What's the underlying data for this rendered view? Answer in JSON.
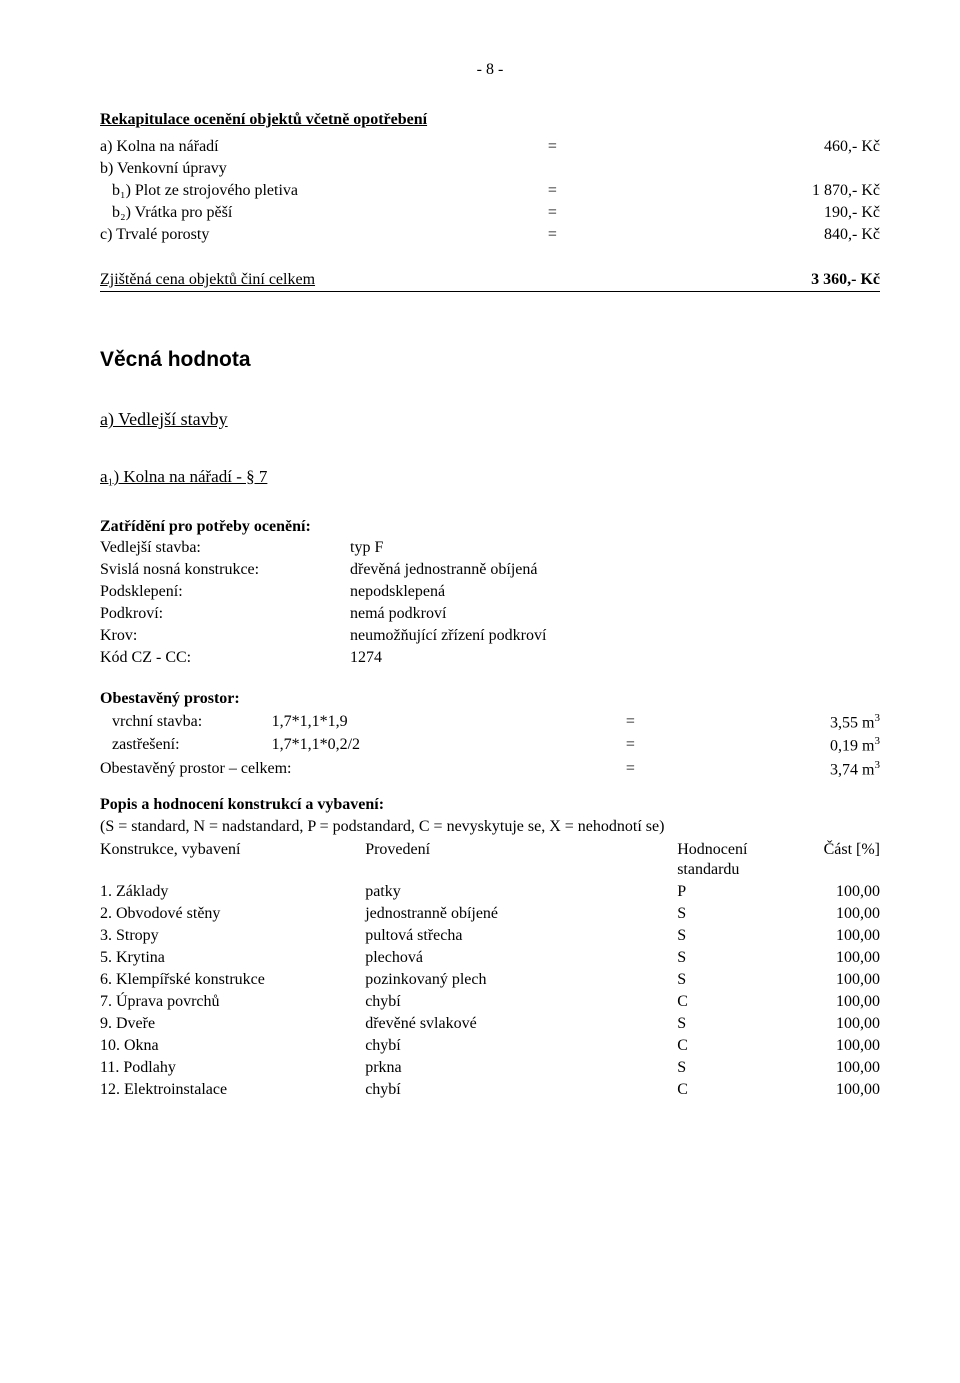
{
  "page_num": "- 8 -",
  "recap_title": "Rekapitulace ocenění objektů včetně opotřebení",
  "recap_rows": [
    {
      "label": "a) Kolna na nářadí",
      "eq": "=",
      "val": "460,- Kč",
      "indent": false
    },
    {
      "label": "b) Venkovní úpravy",
      "eq": "",
      "val": "",
      "indent": false
    },
    {
      "label": "b₁) Plot ze strojového pletiva",
      "eq": "=",
      "val": "1 870,- Kč",
      "indent": true
    },
    {
      "label": "b₂) Vrátka pro pěší",
      "eq": "=",
      "val": "190,- Kč",
      "indent": true
    },
    {
      "label": "c) Trvalé porosty",
      "eq": "=",
      "val": "840,- Kč",
      "indent": false
    }
  ],
  "zjistena_label": "Zjištěná cena objektů činí celkem",
  "zjistena_val": "3 360,- Kč",
  "vecna_title": "Věcná hodnota",
  "vedlejsi_title": "a) Vedlejší stavby",
  "a1_title": "a₁) Kolna na nářadí - § 7",
  "zatrideni_title": "Zatřídění pro potřeby ocenění:",
  "zatrideni_rows": [
    {
      "k": "Vedlejší stavba:",
      "v": "typ F"
    },
    {
      "k": "Svislá nosná konstrukce:",
      "v": "dřevěná jednostranně obíjená"
    },
    {
      "k": "Podsklepení:",
      "v": "nepodsklepená"
    },
    {
      "k": "Podkroví:",
      "v": "nemá podkroví"
    },
    {
      "k": "Krov:",
      "v": "neumožňující zřízení podkroví"
    },
    {
      "k": "Kód CZ - CC:",
      "v": "1274"
    }
  ],
  "obestav_title": "Obestavěný prostor:",
  "obestav_rows": [
    {
      "label": "vrchní stavba:",
      "calc": "1,7*1,1*1,9",
      "eq": "=",
      "val": "3,55 m",
      "sup": "3",
      "indent": true
    },
    {
      "label": "zastřešení:",
      "calc": "1,7*1,1*0,2/2",
      "eq": "=",
      "val": "0,19 m",
      "sup": "3",
      "indent": true
    }
  ],
  "obestav_total_label": "Obestavěný prostor – celkem:",
  "obestav_total_eq": "=",
  "obestav_total_val": "3,74 m",
  "obestav_total_sup": "3",
  "popis_title": "Popis a hodnocení konstrukcí a vybavení:",
  "popis_legend": "(S = standard, N = nadstandard, P = podstandard, C = nevyskytuje se, X = nehodnotí se)",
  "kt_head": [
    "Konstrukce, vybavení",
    "Provedení",
    "Hodnocení standardu",
    "Část [%]"
  ],
  "kt_rows": [
    {
      "n": "1. Základy",
      "p": "patky",
      "h": "P",
      "c": "100,00"
    },
    {
      "n": "2. Obvodové stěny",
      "p": "jednostranně obíjené",
      "h": "S",
      "c": "100,00"
    },
    {
      "n": "3. Stropy",
      "p": "pultová střecha",
      "h": "S",
      "c": "100,00"
    },
    {
      "n": "5. Krytina",
      "p": "plechová",
      "h": "S",
      "c": "100,00"
    },
    {
      "n": "6. Klempířské konstrukce",
      "p": "pozinkovaný plech",
      "h": "S",
      "c": "100,00"
    },
    {
      "n": "7. Úprava povrchů",
      "p": "chybí",
      "h": "C",
      "c": "100,00"
    },
    {
      "n": "9. Dveře",
      "p": "dřevěné svlakové",
      "h": "S",
      "c": "100,00"
    },
    {
      "n": "10. Okna",
      "p": "chybí",
      "h": "C",
      "c": "100,00"
    },
    {
      "n": "11. Podlahy",
      "p": "prkna",
      "h": "S",
      "c": "100,00"
    },
    {
      "n": "12. Elektroinstalace",
      "p": "chybí",
      "h": "C",
      "c": "100,00"
    }
  ]
}
